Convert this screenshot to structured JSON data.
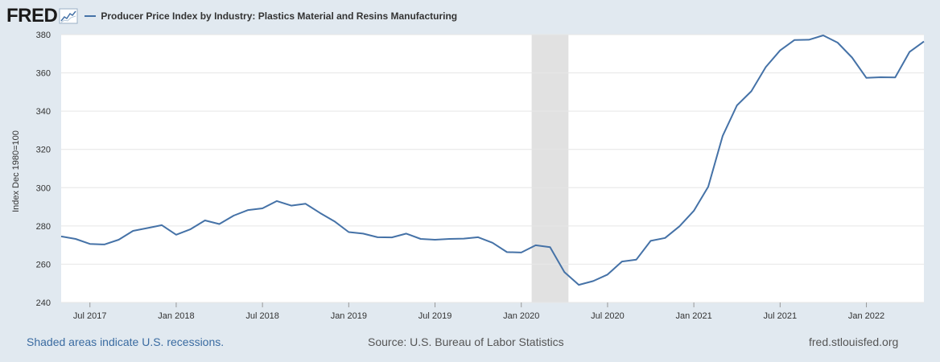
{
  "header": {
    "logo": "FRED",
    "series_title": "Producer Price Index by Industry: Plastics Material and Resins Manufacturing"
  },
  "footer": {
    "recession_note": "Shaded areas indicate U.S. recessions.",
    "source": "Source: U.S. Bureau of Labor Statistics",
    "site": "fred.stlouisfed.org"
  },
  "colors": {
    "line": "#4572a7",
    "recession": "#e1e1e1",
    "grid": "#e6e6e6",
    "plot_bg": "#ffffff",
    "page_bg": "#e1e9f0"
  },
  "chart_data": {
    "type": "line",
    "title": "Producer Price Index by Industry: Plastics Material and Resins Manufacturing",
    "xlabel": "",
    "ylabel": "Index Dec 1980=100",
    "ylim": [
      240,
      380
    ],
    "yticks": [
      240,
      260,
      280,
      300,
      320,
      340,
      360,
      380
    ],
    "xlim": [
      "2017-05",
      "2022-05"
    ],
    "xticks": [
      {
        "label": "Jul 2017",
        "date": "2017-07"
      },
      {
        "label": "Jan 2018",
        "date": "2018-01"
      },
      {
        "label": "Jul 2018",
        "date": "2018-07"
      },
      {
        "label": "Jan 2019",
        "date": "2019-01"
      },
      {
        "label": "Jul 2019",
        "date": "2019-07"
      },
      {
        "label": "Jan 2020",
        "date": "2020-01"
      },
      {
        "label": "Jul 2020",
        "date": "2020-07"
      },
      {
        "label": "Jan 2021",
        "date": "2021-01"
      },
      {
        "label": "Jul 2021",
        "date": "2021-07"
      },
      {
        "label": "Jan 2022",
        "date": "2022-01"
      }
    ],
    "recessions": [
      {
        "start": "2020-02",
        "end": "2020-04"
      }
    ],
    "grid": true,
    "series": [
      {
        "name": "Producer Price Index by Industry: Plastics Material and Resins Manufacturing",
        "x": [
          "2017-05",
          "2017-06",
          "2017-07",
          "2017-08",
          "2017-09",
          "2017-10",
          "2017-11",
          "2017-12",
          "2018-01",
          "2018-02",
          "2018-03",
          "2018-04",
          "2018-05",
          "2018-06",
          "2018-07",
          "2018-08",
          "2018-09",
          "2018-10",
          "2018-11",
          "2018-12",
          "2019-01",
          "2019-02",
          "2019-03",
          "2019-04",
          "2019-05",
          "2019-06",
          "2019-07",
          "2019-08",
          "2019-09",
          "2019-10",
          "2019-11",
          "2019-12",
          "2020-01",
          "2020-02",
          "2020-03",
          "2020-04",
          "2020-05",
          "2020-06",
          "2020-07",
          "2020-08",
          "2020-09",
          "2020-10",
          "2020-11",
          "2020-12",
          "2021-01",
          "2021-02",
          "2021-03",
          "2021-04",
          "2021-05",
          "2021-06",
          "2021-07",
          "2021-08",
          "2021-09",
          "2021-10",
          "2021-11",
          "2021-12",
          "2022-01",
          "2022-02",
          "2022-03",
          "2022-04",
          "2022-05"
        ],
        "values": [
          274.5,
          273.2,
          270.6,
          270.3,
          272.8,
          277.4,
          278.9,
          280.4,
          275.4,
          278.3,
          282.9,
          281.0,
          285.4,
          288.3,
          289.2,
          293.0,
          290.6,
          291.6,
          286.8,
          282.4,
          276.8,
          276.0,
          274.1,
          274.0,
          276.0,
          273.2,
          272.8,
          273.2,
          273.4,
          274.1,
          271.2,
          266.3,
          266.1,
          269.9,
          268.9,
          255.9,
          249.2,
          251.2,
          254.6,
          261.4,
          262.4,
          272.2,
          273.7,
          279.8,
          287.9,
          300.5,
          327.0,
          343.0,
          350.4,
          363.0,
          371.7,
          377.2,
          377.3,
          379.6,
          375.8,
          368.0,
          357.4,
          357.7,
          357.6,
          370.9,
          376.4
        ]
      }
    ]
  }
}
